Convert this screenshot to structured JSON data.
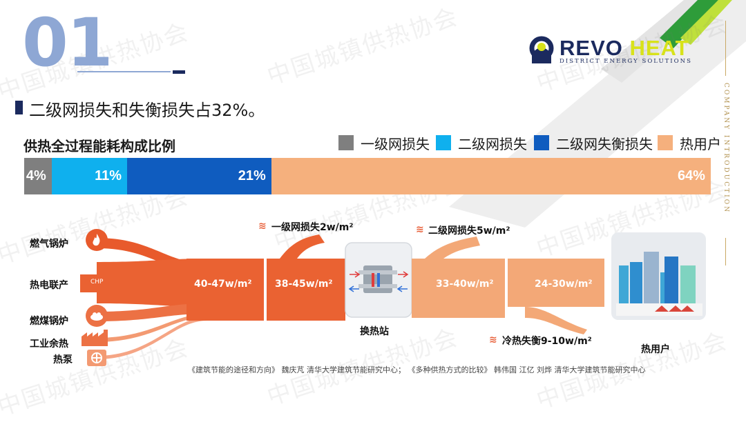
{
  "section_number": "01",
  "headline": "二级网损失和失衡损失占32%。",
  "chart_title": "供热全过程能耗构成比例",
  "logo": {
    "brand_main": "REVO",
    "brand_accent": "HEAT",
    "tagline": "DISTRICT ENERGY SOLUTIONS"
  },
  "side_text": "COMPANY INTRODUCTION",
  "watermark": "中国城镇供热协会",
  "legend": [
    {
      "label": "一级网损失",
      "color": "#7f7f7f"
    },
    {
      "label": "二级网损失",
      "color": "#0fb0ee"
    },
    {
      "label": "二级网失衡损失",
      "color": "#0f5cbf"
    },
    {
      "label": "热用户",
      "color": "#f5b07d"
    }
  ],
  "composition_bar": [
    {
      "label": "4%",
      "value": 4,
      "color": "#7f7f7f"
    },
    {
      "label": "11%",
      "value": 11,
      "color": "#0fb0ee"
    },
    {
      "label": "21%",
      "value": 21,
      "color": "#0f5cbf"
    },
    {
      "label": "64%",
      "value": 64,
      "color": "#f5b07d"
    }
  ],
  "sources": [
    "燃气锅炉",
    "热电联产",
    "燃煤锅炉",
    "工业余热",
    "热泵"
  ],
  "chp_icon_text": "CHP",
  "flow_values": [
    "40-47w/m²",
    "38-45w/m²",
    "33-40w/m²",
    "24-30w/m²"
  ],
  "losses": {
    "primary": "一级网损失2w/m²",
    "secondary": "二级网损失5w/m²",
    "imbalance": "冷热失衡9-10w/m²"
  },
  "station_label": "换热站",
  "user_label": "热用户",
  "citation": "《建筑节能的途径和方向》 魏庆芃 清华大学建筑节能研究中心；  《多种供热方式的比较》 韩伟国 江亿 刘烨 清华大学建筑节能研究中心"
}
